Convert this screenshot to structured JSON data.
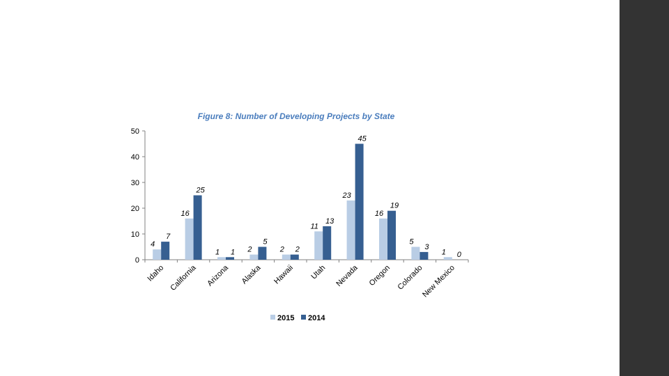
{
  "chart_data": {
    "type": "bar",
    "title": "Figure 8: Number of Developing Projects by State",
    "categories": [
      "Idaho",
      "California",
      "Arizona",
      "Alaska",
      "Hawaii",
      "Utah",
      "Nevada",
      "Oregon",
      "Colorado",
      "New Mexico"
    ],
    "series": [
      {
        "name": "2015",
        "color": "#b9cde5",
        "values": [
          4,
          16,
          1,
          2,
          2,
          11,
          23,
          16,
          5,
          1
        ]
      },
      {
        "name": "2014",
        "color": "#365f91",
        "values": [
          7,
          25,
          1,
          5,
          2,
          13,
          45,
          19,
          3,
          0
        ]
      }
    ],
    "ylim": [
      0,
      50
    ],
    "yticks": [
      0,
      10,
      20,
      30,
      40,
      50
    ],
    "grid": false,
    "legend_position": "bottom"
  },
  "colors": {
    "side_bar": "#333333",
    "axis": "#808080",
    "title": "#4a7dbd"
  }
}
